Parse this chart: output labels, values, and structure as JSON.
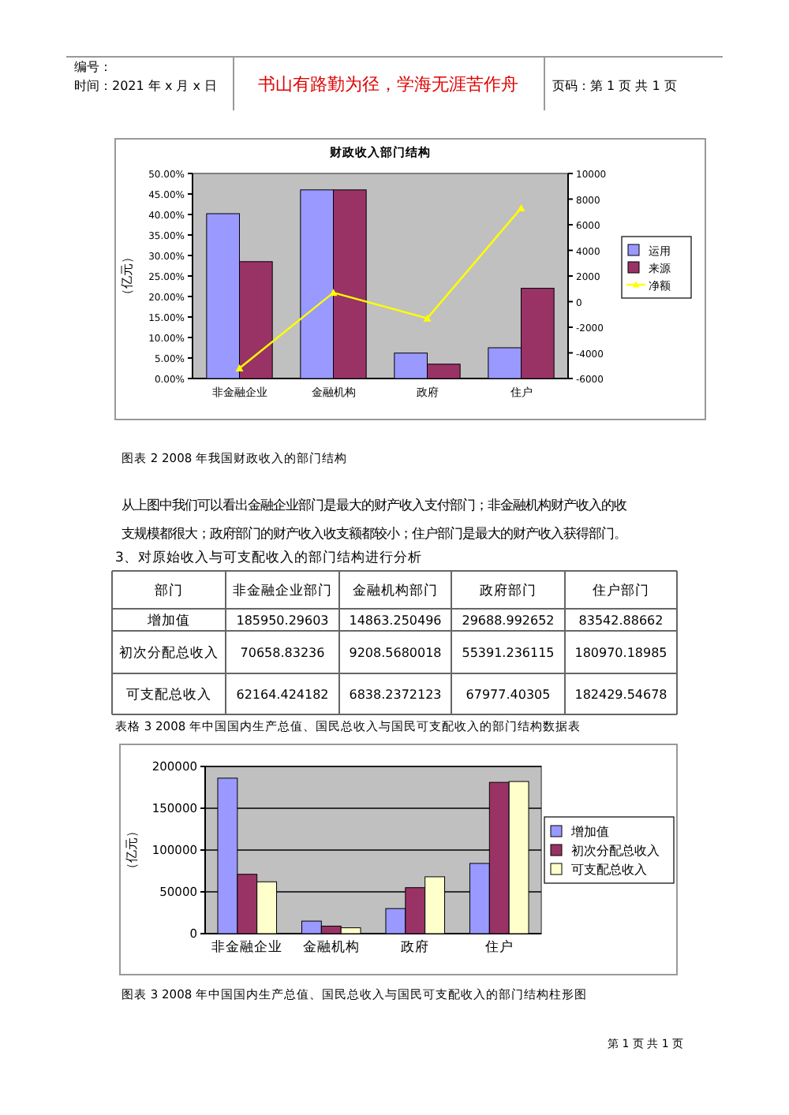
{
  "chart_data": [
    {
      "type": "other",
      "annotations": [
        "编号：",
        "时间：2021 年 x 月 x 日",
        "书山有路勤为径，学海无涯苦作舟",
        "页码：第 1 页  共 1 页"
      ]
    },
    {
      "type": "bar",
      "title": "财政收入部门结构",
      "ylabel": "（亿元）",
      "categories": [
        "非金融企业",
        "金融机构",
        "政府",
        "住户"
      ],
      "series": [
        {
          "name": "运用",
          "color": "#9999ff",
          "values": [
            40.2,
            46,
            6.2,
            7.5
          ]
        },
        {
          "name": "来源",
          "color": "#993366",
          "values": [
            28.5,
            46,
            3.5,
            22
          ]
        },
        {
          "name": "净额",
          "type": "line",
          "axis": "y2",
          "marker": "triangle",
          "color": "#ffff00",
          "values": [
            -5200,
            700,
            -1300,
            7300
          ]
        }
      ],
      "ylim": [
        0,
        50
      ],
      "yticks": [
        {
          "value": 0,
          "label": "0.00%"
        },
        {
          "value": 5,
          "label": "5.00%"
        },
        {
          "value": 10,
          "label": "10.00%"
        },
        {
          "value": 15,
          "label": "15.00%"
        },
        {
          "value": 20,
          "label": "20.00%"
        },
        {
          "value": 25,
          "label": "25.00%"
        },
        {
          "value": 30,
          "label": "30.00%"
        },
        {
          "value": 35,
          "label": "35.00%"
        },
        {
          "value": 40,
          "label": "40.00%"
        },
        {
          "value": 45,
          "label": "45.00%"
        },
        {
          "value": 50,
          "label": "50.00%"
        }
      ],
      "y2lim": [
        -6000,
        10000
      ],
      "y2ticks": [
        -6000,
        -4000,
        -2000,
        0,
        2000,
        4000,
        6000,
        8000,
        10000
      ],
      "legend": "right",
      "annotations": [
        "图表 2     2008 年我国财政收入的部门结构",
        "从上图中我们可以看出金融企业部门是最大的财产收入支付部门；非金融机构财产收入的收",
        "支规模都很大；政府部门的财产收入收支额都较小；住户部门是最大的财产收入获得部门。"
      ]
    },
    {
      "type": "other",
      "title": "3、对原始收入与可支配收入的部门结构进行分析",
      "categories": [
        "非金融企业部门",
        "金融机构部门",
        "政府部门",
        "住户部门"
      ],
      "y_categories": [
        "增加值",
        "初次分配总收入",
        "可支配总收入"
      ],
      "cell_labels": [
        [
          "185950.29603",
          "14863.250496",
          "29688.992652",
          "83542.88662"
        ],
        [
          "70658.83236",
          "9208.5680018",
          "55391.236115",
          "180970.18985"
        ],
        [
          "62164.424182",
          "6838.2372123",
          "67977.40305",
          "182429.54678"
        ]
      ],
      "annotations": [
        "部门",
        "表格 3      2008 年中国国内生产总值、国民总收入与国民可支配收入的部门结构数据表"
      ]
    },
    {
      "type": "bar",
      "ylabel": "（亿元）",
      "categories": [
        "非金融企业",
        "金融机构",
        "政府",
        "住户"
      ],
      "series": [
        {
          "name": "增加值",
          "color": "#9999ff",
          "values": [
            186000,
            15000,
            30000,
            84000
          ]
        },
        {
          "name": "初次分配总收入",
          "color": "#993366",
          "values": [
            71000,
            9000,
            55000,
            181000
          ]
        },
        {
          "name": "可支配总收入",
          "color": "#ffffcc",
          "values": [
            62000,
            7000,
            68000,
            182000
          ]
        }
      ],
      "ylim": [
        0,
        200000
      ],
      "yticks": [
        0,
        50000,
        100000,
        150000,
        200000
      ],
      "grid": "y",
      "legend": "right",
      "annotations": [
        "图表 3     2008 年中国国内生产总值、国民总收入与国民可支配收入的部门结构柱形图",
        "第 1 页 共 1 页"
      ]
    }
  ]
}
